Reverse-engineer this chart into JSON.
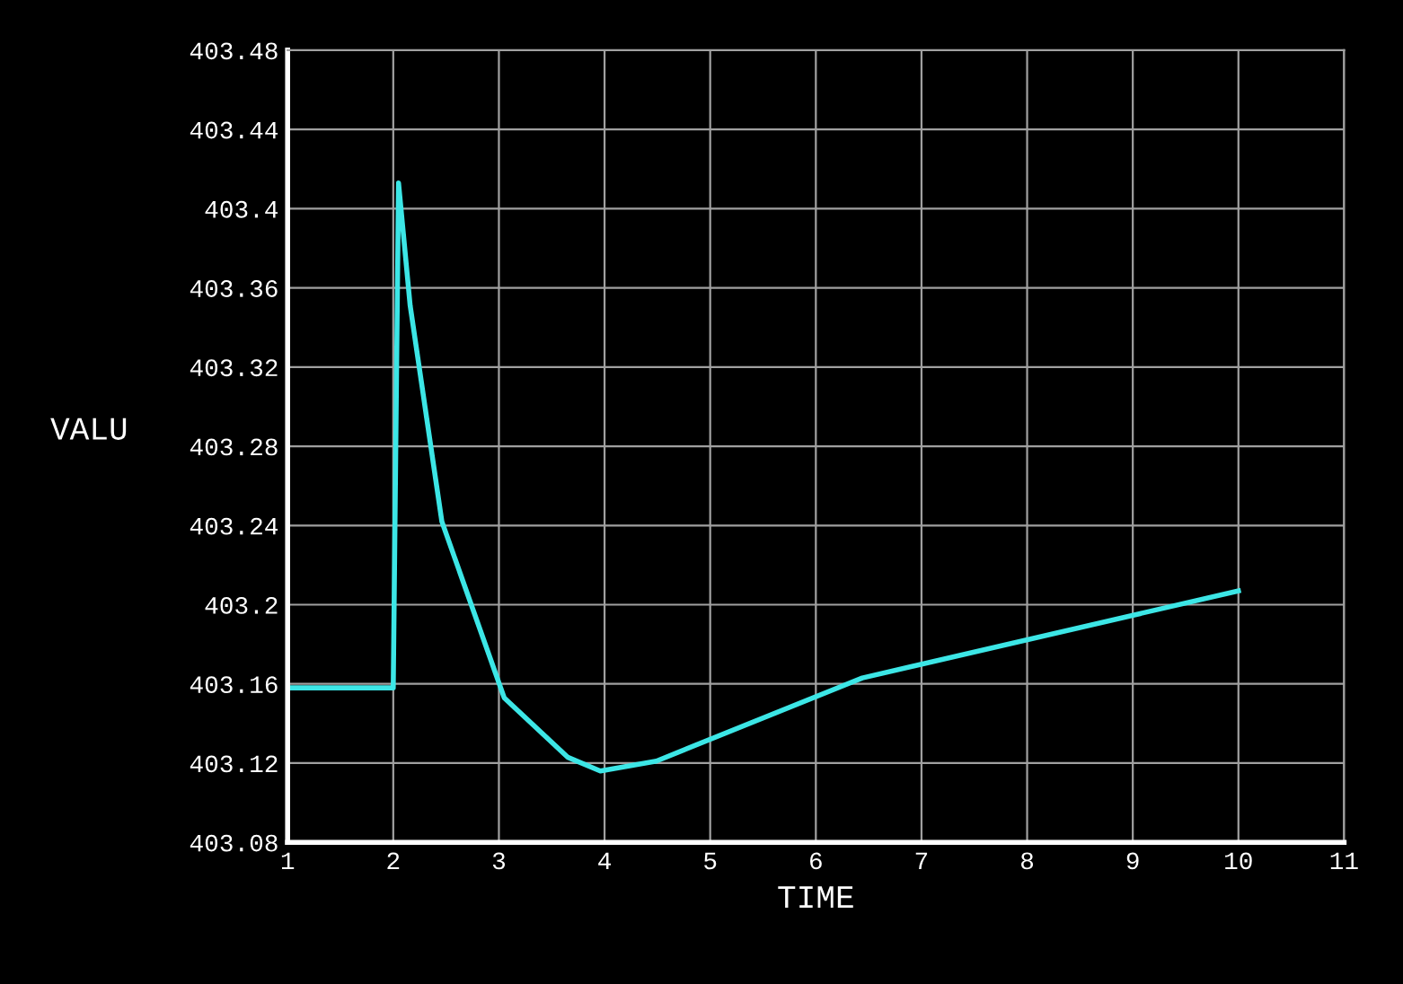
{
  "chart_data": {
    "type": "line",
    "xlabel": "TIME",
    "ylabel": "VALU",
    "x": [
      1,
      2,
      2.05,
      2.16,
      2.46,
      3.05,
      3.65,
      3.96,
      4.49,
      6.44,
      10
    ],
    "series": [
      {
        "color": "#3ce6e6",
        "values": [
          403.158,
          403.158,
          403.413,
          403.351,
          403.242,
          403.153,
          403.123,
          403.116,
          403.121,
          403.163,
          403.207
        ]
      }
    ],
    "xlim": [
      1,
      11
    ],
    "xticks": [
      1,
      2,
      3,
      4,
      5,
      6,
      7,
      8,
      9,
      10,
      11
    ],
    "ylim": [
      403.08,
      403.48
    ],
    "yticks": [
      403.08,
      403.12,
      403.16,
      403.2,
      403.24,
      403.28,
      403.32,
      403.36,
      403.4,
      403.44,
      403.48
    ],
    "grid": true,
    "marker": "none",
    "line_style": "solid"
  }
}
